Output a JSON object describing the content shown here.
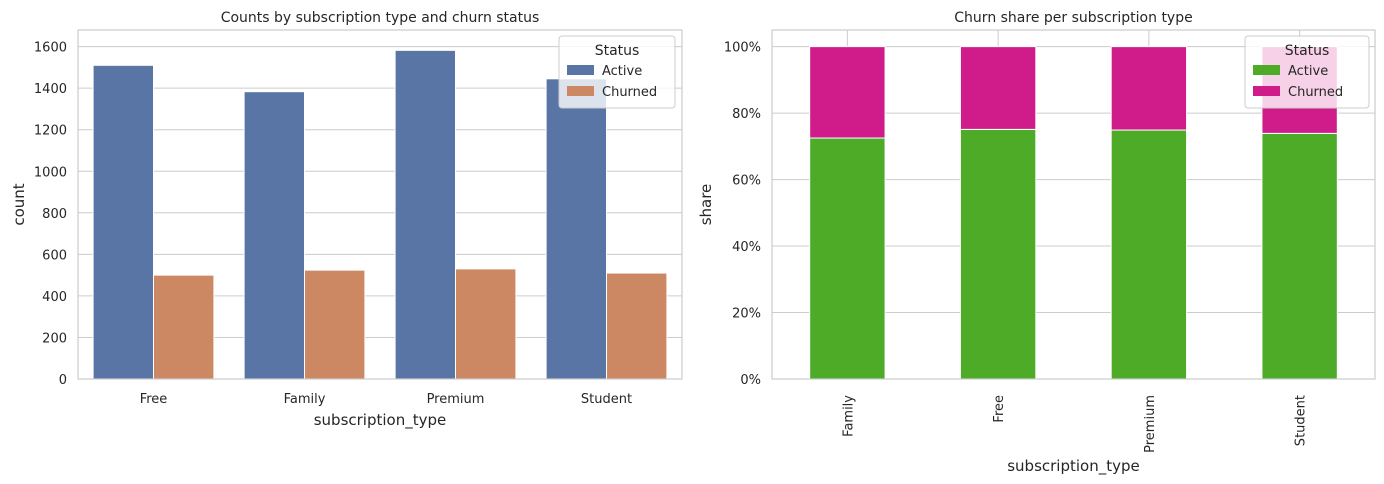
{
  "chart_data": [
    {
      "type": "bar",
      "title": "Counts by subscription type and churn status",
      "xlabel": "subscription_type",
      "ylabel": "count",
      "categories": [
        "Free",
        "Family",
        "Premium",
        "Student"
      ],
      "ylim": [
        0,
        1680
      ],
      "yticks": [
        0,
        200,
        400,
        600,
        800,
        1000,
        1200,
        1400,
        1600
      ],
      "ytick_labels": [
        "0",
        "200",
        "400",
        "600",
        "800",
        "1000",
        "1200",
        "1400",
        "1600"
      ],
      "grid": true,
      "legend": {
        "title": "Status",
        "placement": "top-right"
      },
      "series": [
        {
          "name": "Active",
          "color": "#5875a6",
          "values": [
            1510,
            1383,
            1582,
            1445
          ]
        },
        {
          "name": "Churned",
          "color": "#cc8863",
          "values": [
            500,
            524,
            530,
            510
          ]
        }
      ]
    },
    {
      "type": "bar",
      "stacked": true,
      "title": "Churn share per subscription type",
      "xlabel": "subscription_type",
      "ylabel": "share",
      "categories": [
        "Family",
        "Free",
        "Premium",
        "Student"
      ],
      "ylim": [
        0,
        1.05
      ],
      "yticks": [
        0,
        0.2,
        0.4,
        0.6,
        0.8,
        1.0
      ],
      "ytick_labels": [
        "0%",
        "20%",
        "40%",
        "60%",
        "80%",
        "100%"
      ],
      "grid": true,
      "legend": {
        "title": "Status",
        "placement": "top-right"
      },
      "series": [
        {
          "name": "Active",
          "color": "#4dab28",
          "values": [
            0.725,
            0.751,
            0.749,
            0.739
          ]
        },
        {
          "name": "Churned",
          "color": "#d01c8b",
          "values": [
            0.275,
            0.249,
            0.251,
            0.261
          ]
        }
      ]
    }
  ]
}
